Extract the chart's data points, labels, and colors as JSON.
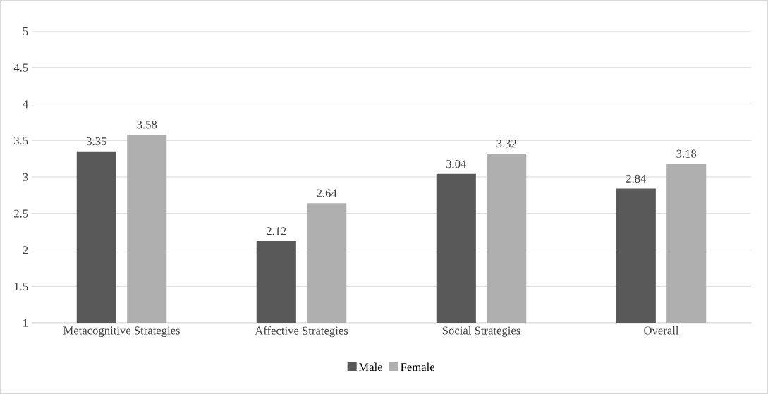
{
  "chart_data": {
    "type": "bar",
    "categories": [
      "Metacognitive Strategies",
      "Affective Strategies",
      "Social Strategies",
      "Overall"
    ],
    "series": [
      {
        "name": "Male",
        "color": "#595959",
        "values": [
          3.35,
          2.12,
          3.04,
          2.84
        ]
      },
      {
        "name": "Female",
        "color": "#afafaf",
        "values": [
          3.58,
          2.64,
          3.32,
          3.18
        ]
      }
    ],
    "ylim": [
      1,
      5
    ],
    "yticks": [
      1,
      1.5,
      2,
      2.5,
      3,
      3.5,
      4,
      4.5,
      5
    ],
    "grid": "y",
    "legend": "bottom",
    "data_labels": true
  }
}
